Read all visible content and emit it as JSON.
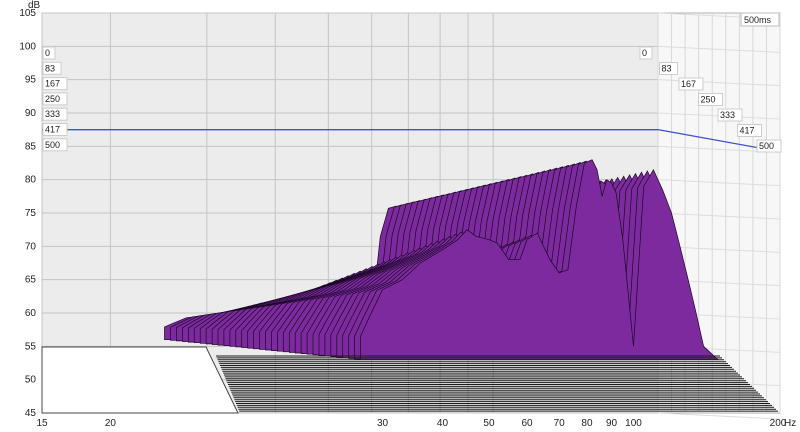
{
  "chart_data": {
    "type": "waterfall",
    "title": "",
    "ylabel": "dB",
    "xlabel": "Hz",
    "x_scale": "log",
    "xlim": [
      15,
      200
    ],
    "ylim": [
      45,
      105
    ],
    "x_ticks": [
      "15",
      "20",
      "30",
      "40",
      "50",
      "60",
      "70",
      "80",
      "90",
      "100",
      "200"
    ],
    "y_ticks": [
      "45",
      "50",
      "55",
      "60",
      "65",
      "70",
      "75",
      "80",
      "85",
      "90",
      "95",
      "100",
      "105"
    ],
    "time_unit": "ms",
    "time_ticks": [
      "0",
      "83",
      "167",
      "250",
      "333",
      "417",
      "500"
    ],
    "time_range_label": "500ms",
    "reference_level_db": 87.5,
    "front_slice_ms": 0,
    "front_slice": {
      "x": [
        27,
        28,
        30,
        33,
        36,
        40,
        43,
        45,
        47,
        50,
        52,
        55,
        58,
        60,
        63,
        67,
        70,
        73,
        76,
        79,
        82,
        84,
        86,
        88,
        90,
        92,
        95,
        100,
        105,
        110,
        115,
        120,
        125,
        130,
        135,
        140,
        150
      ],
      "y": [
        56.5,
        59,
        63.5,
        65,
        67.5,
        69.5,
        71,
        72.5,
        71.5,
        71,
        70.5,
        68,
        68,
        71,
        72,
        68,
        66,
        66.5,
        76,
        82.5,
        83,
        81.5,
        77.5,
        80,
        79.5,
        78,
        71,
        55,
        79,
        81.5,
        78.5,
        75,
        70,
        65,
        60,
        55,
        50
      ]
    },
    "colors": {
      "fill": "#7d2a9e",
      "slice_stroke": "#1a0826",
      "grid_back": "#ececec",
      "grid_right": "#f6f6f6",
      "gridline": "#c4c4c4",
      "reference_line": "#3a53c8"
    }
  }
}
